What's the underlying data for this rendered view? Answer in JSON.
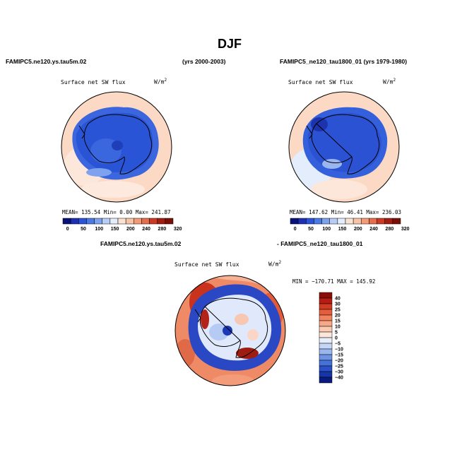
{
  "title": "DJF",
  "panels": {
    "top_left": {
      "case_name": "FAMIPC5.ne120.ys.tau5m.02",
      "years": "(yrs 2000-2003)",
      "plot_title": "Surface net SW flux",
      "units": "W/m",
      "units_exp": "2",
      "stats": "MEAN= 135.54  Min=    0.00  Max= 241.87"
    },
    "top_right": {
      "case_name": "FAMIPC5_ne120_tau1800_01 (yrs 1979-1980)",
      "plot_title": "Surface net SW flux",
      "units": "W/m",
      "units_exp": "2",
      "stats": "MEAN= 147.62  Min=   46.41  Max= 236.03"
    },
    "bottom": {
      "case_a": "FAMIPC5.ne120.ys.tau5m.02",
      "case_b": "- FAMIPC5_ne120_tau1800_01",
      "plot_title": "Surface net SW flux",
      "units": "W/m",
      "units_exp": "2",
      "stats": "MIN = −170.71  MAX = 145.92"
    }
  },
  "chart_data": [
    {
      "type": "heatmap",
      "name": "top-left-map",
      "projection": "polar stereographic (south pole)",
      "colorbar": {
        "ticks": [
          "0",
          "50",
          "100",
          "150",
          "200",
          "240",
          "280",
          "320"
        ],
        "colors": [
          "#08127a",
          "#1d2fb5",
          "#2c54d9",
          "#4a7ae6",
          "#7ea2ee",
          "#b7cdf5",
          "#e4edfb",
          "#fbe3d4",
          "#f8c4a7",
          "#f29b76",
          "#e66e4b",
          "#cc3a24",
          "#a41c10",
          "#7a0f07"
        ]
      }
    },
    {
      "type": "heatmap",
      "name": "top-right-map",
      "projection": "polar stereographic (south pole)",
      "colorbar": {
        "ticks": [
          "0",
          "50",
          "100",
          "150",
          "200",
          "240",
          "280",
          "320"
        ],
        "colors": [
          "#08127a",
          "#1d2fb5",
          "#2c54d9",
          "#4a7ae6",
          "#7ea2ee",
          "#b7cdf5",
          "#e4edfb",
          "#fbe3d4",
          "#f8c4a7",
          "#f29b76",
          "#e66e4b",
          "#cc3a24",
          "#a41c10",
          "#7a0f07"
        ]
      }
    },
    {
      "type": "heatmap",
      "name": "difference-map",
      "projection": "polar stereographic (south pole)",
      "colorbar": {
        "ticks": [
          "40",
          "30",
          "25",
          "20",
          "15",
          "10",
          "5",
          "0",
          "−5",
          "−10",
          "−15",
          "−20",
          "−25",
          "−30",
          "−40"
        ],
        "colors": [
          "#8a0d06",
          "#b41d10",
          "#d23a22",
          "#e65d3c",
          "#f2835e",
          "#f7a887",
          "#fbcab2",
          "#fde6da",
          "#e6eefb",
          "#c4d6f6",
          "#9ab6ee",
          "#6d93e4",
          "#4672d8",
          "#2a51c7",
          "#1734a8",
          "#0a1a7e"
        ]
      }
    }
  ]
}
